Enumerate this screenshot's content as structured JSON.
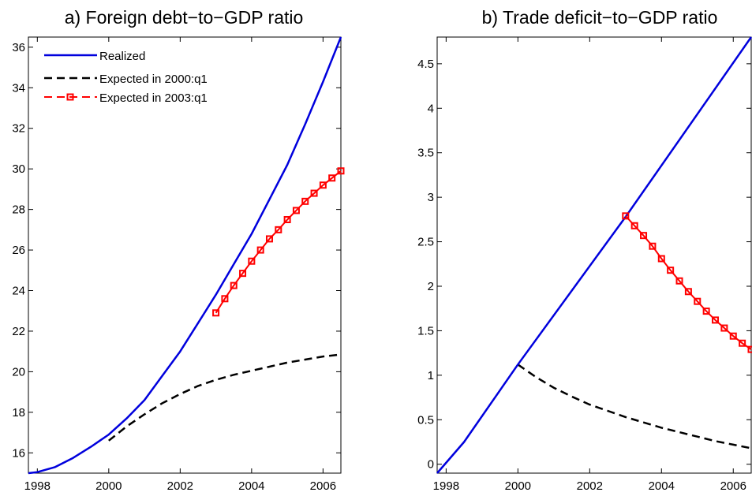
{
  "colors": {
    "realized": "#0000dd",
    "expected_2000": "#000000",
    "expected_2003": "#ff0000"
  },
  "legend": {
    "items": [
      {
        "label": "Realized",
        "series": "realized"
      },
      {
        "label": "Expected in 2000:q1",
        "series": "expected_2000"
      },
      {
        "label": "Expected in 2003:q1",
        "series": "expected_2003"
      }
    ]
  },
  "chart_data": [
    {
      "type": "line",
      "title": "a) Foreign debt−to−GDP ratio",
      "xlim": [
        1997.75,
        2006.5
      ],
      "ylim": [
        15,
        36.5
      ],
      "xticks": [
        1998,
        2000,
        2002,
        2004,
        2006
      ],
      "xtick_labels": [
        "1998",
        "2000",
        "2002",
        "2004",
        "2006"
      ],
      "yticks": [
        16,
        18,
        20,
        22,
        24,
        26,
        28,
        30,
        32,
        34,
        36
      ],
      "ytick_labels": [
        "16",
        "18",
        "20",
        "22",
        "24",
        "26",
        "28",
        "30",
        "32",
        "34",
        "36"
      ],
      "legend_position": "top-left",
      "series": [
        {
          "name": "Realized",
          "key": "realized",
          "style": "solid",
          "x": [
            1997.75,
            1998,
            1998.5,
            1999,
            1999.5,
            2000,
            2000.5,
            2001,
            2001.5,
            2002,
            2002.5,
            2003,
            2003.5,
            2004,
            2004.5,
            2005,
            2005.5,
            2006,
            2006.5
          ],
          "y": [
            15.0,
            15.05,
            15.3,
            15.75,
            16.3,
            16.9,
            17.7,
            18.6,
            19.8,
            21.0,
            22.4,
            23.8,
            25.3,
            26.8,
            28.5,
            30.2,
            32.2,
            34.3,
            36.5
          ]
        },
        {
          "name": "Expected in 2000:q1",
          "key": "expected_2000",
          "style": "dashed",
          "x": [
            2000,
            2000.5,
            2001,
            2001.5,
            2002,
            2002.5,
            2003,
            2003.5,
            2004,
            2004.5,
            2005,
            2005.5,
            2006,
            2006.5
          ],
          "y": [
            16.6,
            17.3,
            17.9,
            18.45,
            18.9,
            19.3,
            19.6,
            19.85,
            20.05,
            20.25,
            20.45,
            20.6,
            20.75,
            20.85
          ]
        },
        {
          "name": "Expected in 2003:q1",
          "key": "expected_2003",
          "style": "dashed-marker",
          "x": [
            2003,
            2003.25,
            2003.5,
            2003.75,
            2004,
            2004.25,
            2004.5,
            2004.75,
            2005,
            2005.25,
            2005.5,
            2005.75,
            2006,
            2006.25,
            2006.5
          ],
          "y": [
            22.9,
            23.6,
            24.25,
            24.85,
            25.45,
            26.0,
            26.55,
            27.0,
            27.5,
            27.95,
            28.4,
            28.8,
            29.2,
            29.55,
            29.9
          ]
        }
      ]
    },
    {
      "type": "line",
      "title": "b) Trade deficit−to−GDP ratio",
      "xlim": [
        1997.75,
        2006.5
      ],
      "ylim": [
        -0.1,
        4.8
      ],
      "xticks": [
        1998,
        2000,
        2002,
        2004,
        2006
      ],
      "xtick_labels": [
        "1998",
        "2000",
        "2002",
        "2004",
        "2006"
      ],
      "yticks": [
        0,
        0.5,
        1,
        1.5,
        2,
        2.5,
        3,
        3.5,
        4,
        4.5
      ],
      "ytick_labels": [
        "0",
        "0.5",
        "1",
        "1.5",
        "2",
        "2.5",
        "3",
        "3.5",
        "4",
        "4.5"
      ],
      "series": [
        {
          "name": "Realized",
          "key": "realized",
          "style": "solid",
          "x": [
            1997.75,
            1998.5,
            2000,
            2003,
            2006.5
          ],
          "y": [
            -0.1,
            0.25,
            1.12,
            2.78,
            4.8
          ]
        },
        {
          "name": "Expected in 2000:q1",
          "key": "expected_2000",
          "style": "dashed",
          "x": [
            2000,
            2000.5,
            2001,
            2001.5,
            2002,
            2002.5,
            2003,
            2003.5,
            2004,
            2004.5,
            2005,
            2005.5,
            2006,
            2006.5
          ],
          "y": [
            1.12,
            0.98,
            0.86,
            0.76,
            0.67,
            0.6,
            0.53,
            0.47,
            0.41,
            0.36,
            0.31,
            0.26,
            0.22,
            0.18
          ]
        },
        {
          "name": "Expected in 2003:q1",
          "key": "expected_2003",
          "style": "dashed-marker",
          "x": [
            2003,
            2003.25,
            2003.5,
            2003.75,
            2004,
            2004.25,
            2004.5,
            2004.75,
            2005,
            2005.25,
            2005.5,
            2005.75,
            2006,
            2006.25,
            2006.5
          ],
          "y": [
            2.79,
            2.68,
            2.57,
            2.45,
            2.31,
            2.18,
            2.06,
            1.94,
            1.83,
            1.72,
            1.62,
            1.53,
            1.44,
            1.36,
            1.29
          ]
        }
      ]
    }
  ]
}
